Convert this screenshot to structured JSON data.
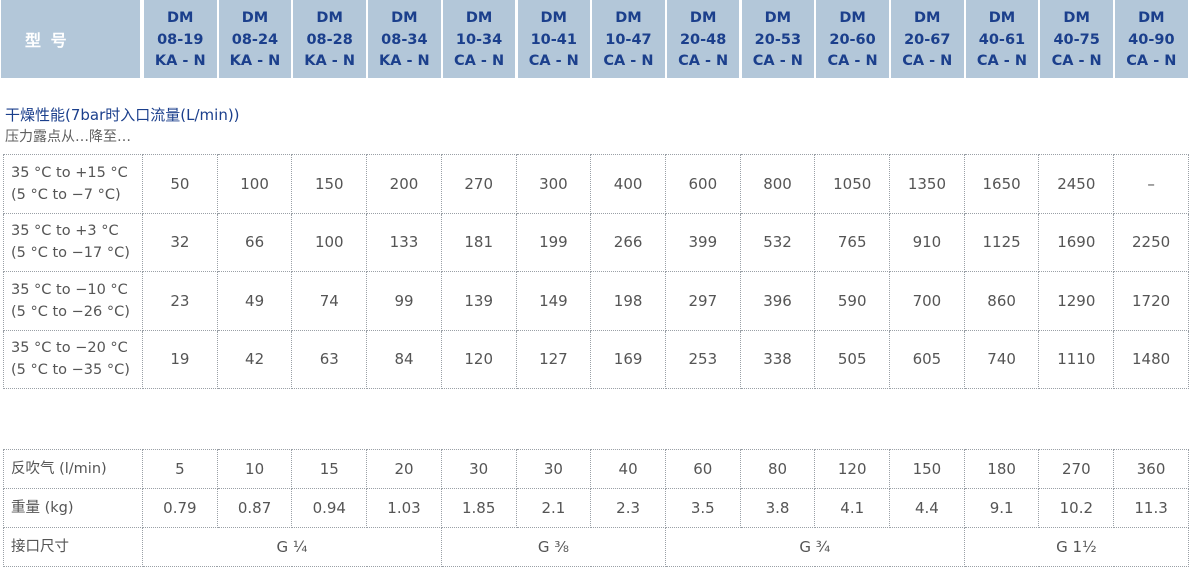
{
  "header": {
    "type_label": "型 号",
    "models": [
      {
        "l1": "DM",
        "l2": "08-19",
        "l3": "KA - N"
      },
      {
        "l1": "DM",
        "l2": "08-24",
        "l3": "KA - N"
      },
      {
        "l1": "DM",
        "l2": "08-28",
        "l3": "KA - N"
      },
      {
        "l1": "DM",
        "l2": "08-34",
        "l3": "KA - N"
      },
      {
        "l1": "DM",
        "l2": "10-34",
        "l3": "CA - N"
      },
      {
        "l1": "DM",
        "l2": "10-41",
        "l3": "CA - N"
      },
      {
        "l1": "DM",
        "l2": "10-47",
        "l3": "CA - N"
      },
      {
        "l1": "DM",
        "l2": "20-48",
        "l3": "CA - N"
      },
      {
        "l1": "DM",
        "l2": "20-53",
        "l3": "CA - N"
      },
      {
        "l1": "DM",
        "l2": "20-60",
        "l3": "CA - N"
      },
      {
        "l1": "DM",
        "l2": "20-67",
        "l3": "CA - N"
      },
      {
        "l1": "DM",
        "l2": "40-61",
        "l3": "CA - N"
      },
      {
        "l1": "DM",
        "l2": "40-75",
        "l3": "CA - N"
      },
      {
        "l1": "DM",
        "l2": "40-90",
        "l3": "CA - N"
      }
    ],
    "bg_color": "#b3c7d9",
    "text_color": "#1b3f8c"
  },
  "section": {
    "title": "干燥性能(7bar时入口流量(L/min))",
    "subtitle": "压力露点从…降至…"
  },
  "performance": {
    "rows": [
      {
        "l1": "35 °C to +15 °C",
        "l2": "(5 °C to −7 °C)",
        "values": [
          "50",
          "100",
          "150",
          "200",
          "270",
          "300",
          "400",
          "600",
          "800",
          "1050",
          "1350",
          "1650",
          "2450",
          "–"
        ]
      },
      {
        "l1": "35 °C to +3 °C",
        "l2": "(5 °C to −17 °C)",
        "values": [
          "32",
          "66",
          "100",
          "133",
          "181",
          "199",
          "266",
          "399",
          "532",
          "765",
          "910",
          "1125",
          "1690",
          "2250"
        ]
      },
      {
        "l1": "35 °C to −10 °C",
        "l2": "(5 °C to −26 °C)",
        "values": [
          "23",
          "49",
          "74",
          "99",
          "139",
          "149",
          "198",
          "297",
          "396",
          "590",
          "700",
          "860",
          "1290",
          "1720"
        ]
      },
      {
        "l1": "35 °C to −20 °C",
        "l2": "(5 °C to −35 °C)",
        "values": [
          "19",
          "42",
          "63",
          "84",
          "120",
          "127",
          "169",
          "253",
          "338",
          "505",
          "605",
          "740",
          "1110",
          "1480"
        ]
      }
    ]
  },
  "specs": {
    "purge": {
      "label": "反吹气 (l/min)",
      "values": [
        "5",
        "10",
        "15",
        "20",
        "30",
        "30",
        "40",
        "60",
        "80",
        "120",
        "150",
        "180",
        "270",
        "360"
      ]
    },
    "weight": {
      "label": "重量 (kg)",
      "values": [
        "0.79",
        "0.87",
        "0.94",
        "1.03",
        "1.85",
        "2.1",
        "2.3",
        "3.5",
        "3.8",
        "4.1",
        "4.4",
        "9.1",
        "10.2",
        "11.3"
      ]
    },
    "port": {
      "label": "接口尺寸",
      "groups": [
        {
          "text": "G ¼",
          "span": 4
        },
        {
          "text": "G ⅜",
          "span": 3
        },
        {
          "text": "G ¾",
          "span": 4
        },
        {
          "text": "G 1½",
          "span": 3
        }
      ]
    }
  }
}
